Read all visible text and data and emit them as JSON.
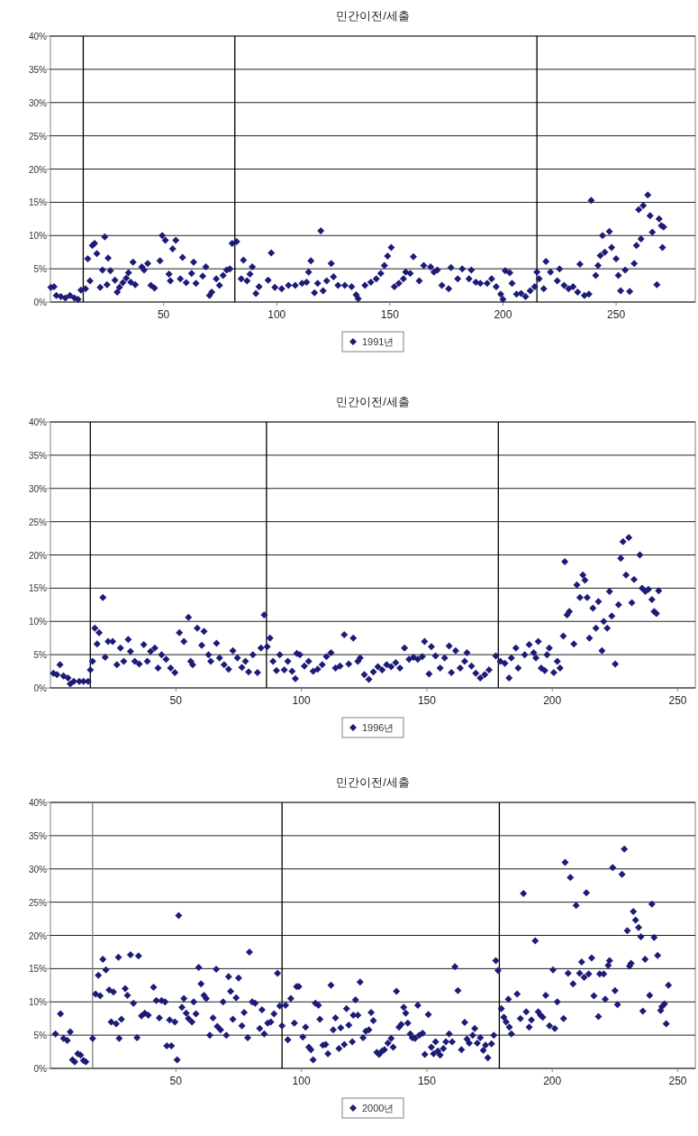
{
  "chart_data": [
    {
      "type": "scatter",
      "title": "민간이전/세출",
      "xlim": [
        0,
        285
      ],
      "xticks": [
        50,
        100,
        150,
        200,
        250
      ],
      "ylim": [
        0,
        40
      ],
      "yticks": [
        {
          "value": 0,
          "label": "0%"
        },
        {
          "value": 5,
          "label": "5%"
        },
        {
          "value": 10,
          "label": "10%"
        },
        {
          "value": 15,
          "label": "15%"
        },
        {
          "value": 20,
          "label": "20%"
        },
        {
          "value": 25,
          "label": "25%"
        },
        {
          "value": 30,
          "label": "30%"
        },
        {
          "value": 35,
          "label": "35%"
        },
        {
          "value": 40,
          "label": "40%"
        }
      ],
      "grid": "y",
      "legend": "bottom",
      "marker": "diamond",
      "ref_lines": [
        {
          "axis": "x",
          "value": 14.5,
          "color": "#000000"
        },
        {
          "axis": "x",
          "value": 81.5,
          "color": "#000000"
        },
        {
          "axis": "x",
          "value": 215,
          "color": "#000000"
        }
      ],
      "series": [
        {
          "name": "1991년",
          "color": "#1c1c78",
          "x": [
            0.2,
            1.6,
            2.6,
            4.6,
            6.6,
            8.6,
            10.6,
            12.2,
            13.5,
            15.5,
            16.5,
            17.5,
            18.5,
            19.5,
            20.5,
            22,
            23,
            24,
            25,
            25.5,
            26.5,
            28.5,
            29.5,
            30.5,
            32,
            33.5,
            34.5,
            35.5,
            36.5,
            37.5,
            40.4,
            41.4,
            43,
            44.4,
            46,
            48.4,
            49.4,
            50.8,
            52.4,
            53,
            54,
            55.4,
            57.4,
            58.4,
            60,
            62.4,
            63.3,
            64.3,
            67.3,
            68.7,
            70.3,
            71.3,
            73.3,
            74.7,
            76.3,
            77.9,
            79.3,
            80.3,
            82.3,
            84.3,
            85.3,
            86.9,
            88.2,
            89.2,
            90.8,
            92.2,
            96.2,
            97.6,
            99.2,
            102.2,
            105.2,
            108.2,
            111.2,
            113.2,
            114.1,
            115.1,
            116.7,
            118.1,
            119.5,
            120.5,
            122.1,
            124.1,
            125.1,
            127.1,
            130.1,
            133.1,
            135.1,
            136,
            139,
            141.6,
            144,
            146,
            147.6,
            149,
            150.6,
            152,
            154,
            156,
            157,
            159,
            160.4,
            163,
            165,
            168,
            169.5,
            171,
            173,
            176,
            177,
            180,
            182,
            185,
            186,
            188,
            190,
            193,
            195,
            197,
            199,
            200,
            201,
            203,
            204,
            206,
            208,
            210,
            212,
            214,
            215,
            216,
            218,
            219,
            221,
            224,
            225,
            227,
            229,
            231,
            233,
            234,
            236,
            238,
            239,
            241,
            242,
            243,
            244,
            245,
            247,
            248,
            250,
            251,
            252,
            254,
            256,
            258,
            259,
            260,
            261,
            262,
            264,
            265,
            266,
            268,
            269,
            270,
            270.5,
            271
          ],
          "values": [
            2.2,
            2.3,
            1,
            0.8,
            0.6,
            1,
            0.6,
            0.4,
            1.8,
            2,
            6.5,
            3.2,
            8.5,
            8.8,
            7.3,
            2.2,
            4.8,
            9.8,
            2.6,
            6.6,
            4.7,
            3.3,
            1.5,
            2.2,
            2.9,
            3.6,
            4.4,
            3,
            6,
            2.6,
            5.3,
            4.8,
            5.8,
            2.5,
            2.1,
            6.2,
            10,
            9.3,
            4.2,
            3.2,
            8,
            9.3,
            3.5,
            6.7,
            2.9,
            4.3,
            6,
            2.8,
            3.9,
            5.3,
            1,
            1.5,
            3.5,
            2.5,
            4,
            4.8,
            5,
            8.8,
            9.1,
            3.5,
            6.3,
            3.2,
            4.2,
            5.3,
            1.3,
            2.3,
            3.3,
            7.4,
            2.2,
            2,
            2.5,
            2.5,
            2.8,
            3,
            4.5,
            6.2,
            1.4,
            2.8,
            10.7,
            1.7,
            3.2,
            5.8,
            3.8,
            2.5,
            2.5,
            2.3,
            1.1,
            0.5,
            2.5,
            3,
            3.5,
            4.3,
            5.5,
            6.9,
            8.2,
            2.3,
            2.8,
            3.5,
            4.5,
            4.3,
            6.8,
            3.2,
            5.5,
            5.3,
            4.5,
            4.8,
            2.5,
            2,
            5.2,
            3.5,
            5,
            3.5,
            4.8,
            3,
            2.8,
            2.8,
            3.5,
            2.3,
            1.2,
            0.4,
            4.7,
            4.4,
            2.8,
            1.2,
            1.3,
            0.8,
            1.7,
            2.3,
            4.5,
            3.5,
            2,
            6.1,
            4.5,
            3.2,
            5,
            2.5,
            2,
            2.3,
            1.5,
            5.7,
            1,
            1.2,
            15.3,
            4,
            5.5,
            7,
            10,
            7.5,
            10.6,
            8.2,
            6.5,
            4,
            1.7,
            4.8,
            1.6,
            5.8,
            8.5,
            13.9,
            9.5,
            14.5,
            16.1,
            13,
            10.5,
            2.6,
            12.5,
            11.5,
            8.2,
            11.3
          ]
        }
      ]
    },
    {
      "type": "scatter",
      "title": "민간이전/세출",
      "xlim": [
        0,
        257
      ],
      "xticks": [
        50,
        100,
        150,
        200,
        250
      ],
      "ylim": [
        0,
        40
      ],
      "yticks": [
        {
          "value": 0,
          "label": "0%"
        },
        {
          "value": 5,
          "label": "5%"
        },
        {
          "value": 10,
          "label": "10%"
        },
        {
          "value": 15,
          "label": "15%"
        },
        {
          "value": 20,
          "label": "20%"
        },
        {
          "value": 25,
          "label": "25%"
        },
        {
          "value": 30,
          "label": "30%"
        },
        {
          "value": 35,
          "label": "35%"
        },
        {
          "value": 40,
          "label": "40%"
        }
      ],
      "grid": "y",
      "legend": "bottom",
      "marker": "diamond",
      "ref_lines": [
        {
          "axis": "x",
          "value": 15.9,
          "color": "#000000"
        },
        {
          "axis": "x",
          "value": 86.1,
          "color": "#000000"
        },
        {
          "axis": "x",
          "value": 178.5,
          "color": "#000000"
        }
      ],
      "series": [
        {
          "name": "1996년",
          "color": "#1c1c78",
          "x": [
            1.2,
            2.6,
            3.8,
            5.2,
            7,
            7.9,
            9.3,
            11.5,
            13.2,
            15,
            15.9,
            16.8,
            17.7,
            18.6,
            19.4,
            20.9,
            21.8,
            23,
            24.8,
            26.5,
            27.9,
            29.2,
            31,
            31.9,
            33.6,
            35.4,
            37.2,
            38.6,
            39.9,
            41.6,
            42.9,
            44.3,
            46.1,
            47.9,
            49.6,
            51.4,
            53.2,
            55,
            55.9,
            56.7,
            58.5,
            60.3,
            61.2,
            63,
            63.9,
            66.2,
            67.4,
            69.2,
            71,
            72.7,
            74.5,
            76.3,
            77.7,
            79,
            80.7,
            82.5,
            83.9,
            85.2,
            86.4,
            87.5,
            88.7,
            90.1,
            91.4,
            93.2,
            94.6,
            96.3,
            97.6,
            98.2,
            99.4,
            101.2,
            102.9,
            104.7,
            106.5,
            108.3,
            110,
            111.8,
            113.6,
            115.4,
            117.1,
            118.9,
            120.7,
            122.5,
            123.4,
            125.1,
            126.9,
            128.7,
            130.5,
            132.2,
            134,
            135.8,
            137.6,
            139.3,
            141.1,
            142.9,
            144.7,
            146.4,
            148.2,
            149.1,
            150.9,
            151.8,
            153.5,
            155.3,
            157.1,
            158.9,
            159.8,
            161.5,
            163.3,
            165.1,
            166,
            167.8,
            169.5,
            171.3,
            173.1,
            174.8,
            177.5,
            179.3,
            181.1,
            182.8,
            183.7,
            185.5,
            186.4,
            189,
            190.8,
            192.6,
            193.5,
            194.4,
            195.6,
            197,
            197.9,
            198.8,
            200.6,
            202,
            203.1,
            204.4,
            205,
            205.9,
            206.8,
            208.6,
            209.8,
            211,
            212.2,
            213,
            213.9,
            214.8,
            216.2,
            217.4,
            218.4,
            219.8,
            220.5,
            221.9,
            222.8,
            223.7,
            225.1,
            226.4,
            227.3,
            228.2,
            229.4,
            230.5,
            231.7,
            232.6,
            234.9,
            235.8,
            237.1,
            238.3,
            239.7,
            240.6,
            241.5,
            242.4
          ],
          "values": [
            2.2,
            2,
            3.5,
            1.8,
            1.5,
            0.6,
            1,
            1,
            1,
            1,
            2.7,
            4,
            9,
            6.6,
            8.3,
            13.6,
            4.6,
            7,
            7,
            3.5,
            6,
            4,
            7.3,
            5.5,
            4,
            3.6,
            6.5,
            4,
            5.5,
            6,
            3,
            5,
            4.3,
            3,
            2.3,
            8.3,
            7,
            10.6,
            4,
            3.5,
            9,
            6.4,
            8.5,
            5,
            4,
            6.7,
            4.5,
            3.5,
            2.8,
            5.6,
            4.5,
            3.1,
            4,
            2.4,
            5,
            2.3,
            6,
            11,
            6.2,
            7.5,
            4,
            2.6,
            5,
            2.7,
            4,
            2.5,
            1.4,
            5.2,
            5,
            3.3,
            4,
            2.5,
            2.8,
            3.5,
            4.7,
            5.3,
            3,
            3.3,
            8,
            3.6,
            7.5,
            4,
            4.5,
            2,
            1.3,
            2.4,
            3.2,
            2.7,
            3.5,
            3.2,
            3.8,
            3,
            6,
            4.3,
            4.6,
            4.3,
            4.7,
            7,
            2.1,
            6.2,
            4.8,
            3,
            4.5,
            6.3,
            2.3,
            5.6,
            3,
            4,
            5.3,
            3.3,
            2.2,
            1.5,
            2,
            2.7,
            4.8,
            4,
            3.7,
            1.5,
            4.5,
            6,
            3,
            5,
            6.5,
            5.3,
            4.5,
            7,
            3,
            2.6,
            5,
            6,
            2.3,
            4,
            3,
            7.8,
            19,
            11,
            11.5,
            6.6,
            15.5,
            13.6,
            17,
            16.2,
            13.6,
            7.5,
            12,
            9,
            13,
            5.6,
            10,
            9,
            14.5,
            10.8,
            3.6,
            12.5,
            19.5,
            22,
            17,
            22.6,
            12.8,
            16.3,
            20,
            15,
            14.5,
            14.8,
            13.3,
            11.5,
            11.2,
            14.6
          ]
        }
      ]
    },
    {
      "type": "scatter",
      "title": "민간이전/세출",
      "xlim": [
        0,
        257
      ],
      "xticks": [
        50,
        100,
        150,
        200,
        250
      ],
      "ylim": [
        0,
        40
      ],
      "yticks": [
        {
          "value": 0,
          "label": "0%"
        },
        {
          "value": 5,
          "label": "5%"
        },
        {
          "value": 10,
          "label": "10%"
        },
        {
          "value": 15,
          "label": "15%"
        },
        {
          "value": 20,
          "label": "20%"
        },
        {
          "value": 25,
          "label": "25%"
        },
        {
          "value": 30,
          "label": "30%"
        },
        {
          "value": 35,
          "label": "35%"
        },
        {
          "value": 40,
          "label": "40%"
        }
      ],
      "grid": "y",
      "legend": "bottom",
      "marker": "diamond",
      "ref_lines": [
        {
          "axis": "x",
          "value": 16.8,
          "color": "#808080"
        },
        {
          "axis": "x",
          "value": 92.3,
          "color": "#000000"
        },
        {
          "axis": "x",
          "value": 178.9,
          "color": "#000000"
        }
      ],
      "series": [
        {
          "name": "2000년",
          "color": "#1c1c78",
          "x": [
            2,
            4,
            5.2,
            6.7,
            7.9,
            8.8,
            9.7,
            10.9,
            12,
            13.2,
            14.1,
            16.8,
            18,
            19.1,
            19.8,
            20.9,
            22.1,
            23.4,
            24.2,
            25.1,
            26.2,
            27.1,
            27.4,
            28.3,
            29.8,
            30.7,
            31.9,
            33.1,
            34.5,
            35.1,
            36.3,
            37.6,
            39,
            41.1,
            42.2,
            43.4,
            44.3,
            45.7,
            46.4,
            47.5,
            48.2,
            49.6,
            50.5,
            51.1,
            52.4,
            53.2,
            54.1,
            55,
            56.4,
            57.1,
            58,
            59.1,
            60,
            61.2,
            62.1,
            63.5,
            64.8,
            66.1,
            66.5,
            67.8,
            68.8,
            70.1,
            71,
            71.8,
            72.7,
            74,
            75,
            76.3,
            77.2,
            78.6,
            79.3,
            80.4,
            81.6,
            83.4,
            84.3,
            85.2,
            86.6,
            87.8,
            89.1,
            90.5,
            91.4,
            92.3,
            93.7,
            94.6,
            95.8,
            97.2,
            98.1,
            99,
            100.6,
            101.7,
            103,
            103.8,
            104.7,
            105.6,
            106.8,
            107.4,
            108.6,
            109.7,
            110.6,
            111.8,
            112.7,
            113.6,
            115,
            115.7,
            117.1,
            118,
            118.9,
            120.3,
            120.7,
            121.6,
            122.5,
            123.4,
            124.6,
            125.7,
            126.9,
            127.8,
            128.7,
            130.1,
            131,
            132.2,
            133.1,
            134.5,
            135.8,
            136.6,
            137.9,
            138.9,
            139.8,
            140.8,
            141.6,
            142.4,
            143.4,
            144.2,
            145.3,
            146.4,
            147,
            148.3,
            149.2,
            150.6,
            151.8,
            152.7,
            153.5,
            154.4,
            155.3,
            156.6,
            157.6,
            158.9,
            160.1,
            161.2,
            162.4,
            163.8,
            165.1,
            166,
            166.9,
            168.3,
            169.1,
            170.1,
            171.3,
            172.5,
            173.4,
            174.3,
            175.8,
            176.7,
            177.5,
            178.4,
            179.7,
            180.7,
            181.6,
            182.9,
            183.7,
            182.5,
            186,
            187.3,
            188.5,
            189.6,
            190.8,
            191.7,
            193.2,
            194.4,
            195.3,
            196.2,
            197.4,
            198.9,
            200.3,
            201,
            202,
            204.5,
            205.1,
            206.3,
            207.2,
            208.3,
            209.5,
            210.9,
            211.7,
            212.7,
            213.6,
            214.5,
            215.7,
            216.6,
            218.4,
            218.9,
            220.5,
            221.1,
            222.3,
            222.8,
            224.1,
            225,
            226,
            227.8,
            228.7,
            229.9,
            230.8,
            231.4,
            232.3,
            233.2,
            234.4,
            235.3,
            236.1,
            237,
            238.8,
            239.7,
            240.6,
            242,
            243.2,
            243.7,
            244.7,
            245.4,
            246.3
          ],
          "values": [
            5.2,
            8.2,
            4.5,
            4.2,
            5.5,
            1.3,
            1,
            2.2,
            2,
            1.2,
            1,
            4.5,
            11.2,
            14,
            10.9,
            16.4,
            14.8,
            11.8,
            7,
            11.5,
            6.7,
            16.7,
            4.5,
            7.4,
            12,
            11,
            17.1,
            9.8,
            4.6,
            16.9,
            7.9,
            8.3,
            8,
            12.2,
            10.2,
            7.6,
            10.2,
            10,
            3.4,
            7.3,
            3.4,
            7,
            1.3,
            23,
            9.2,
            10.5,
            8.3,
            7.5,
            7,
            10,
            8.2,
            15.2,
            12.7,
            11,
            10.5,
            5,
            7.6,
            14.9,
            6.3,
            5.8,
            10,
            5,
            13.8,
            11.6,
            7.4,
            10.6,
            13.6,
            6.4,
            8.4,
            4.6,
            17.5,
            10,
            9.8,
            6,
            8.8,
            5.2,
            6.8,
            7,
            8.2,
            14.3,
            9.4,
            6.4,
            9.5,
            4.3,
            10.5,
            6.8,
            12.3,
            12.3,
            4.7,
            6.2,
            3.2,
            2.8,
            1.3,
            9.8,
            9.5,
            7.4,
            3.5,
            3.6,
            2.2,
            12.5,
            5.8,
            7.6,
            3,
            6.1,
            3.6,
            9,
            6.5,
            4,
            8,
            10.3,
            8,
            13,
            4.6,
            5.6,
            5.8,
            8.4,
            7.2,
            2.4,
            2.1,
            2.6,
            2.8,
            3.8,
            4.5,
            3.2,
            11.6,
            6.2,
            6.6,
            9.2,
            8.3,
            6.8,
            5.2,
            4.6,
            4.5,
            9.5,
            5,
            5.3,
            2.1,
            8.1,
            3.2,
            2.2,
            4,
            2.6,
            2,
            3,
            4,
            5.2,
            4,
            15.3,
            11.7,
            2.8,
            6.9,
            4.4,
            3.8,
            5,
            6,
            3.8,
            4.6,
            2.7,
            3.5,
            1.6,
            3.7,
            5,
            16.2,
            14.7,
            9,
            7.7,
            7,
            6.2,
            5.2,
            10.4,
            11.2,
            7.5,
            26.3,
            8.5,
            6.2,
            7.3,
            19.2,
            8.5,
            8,
            7.7,
            11,
            6.4,
            14.8,
            6,
            10,
            7.5,
            31,
            14.3,
            28.7,
            12.7,
            24.5,
            14.3,
            16,
            13.7,
            26.4,
            14.2,
            16.6,
            10.9,
            7.8,
            14.2,
            14.2,
            10.4,
            15.5,
            16.2,
            30.2,
            11.7,
            9.6,
            29.2,
            33,
            20.7,
            15.4,
            15.8,
            23.6,
            22.3,
            21.2,
            19.8,
            8.6,
            16.4,
            11,
            24.7,
            19.7,
            17,
            8.7,
            9.3,
            9.7,
            6.7,
            12.5
          ]
        }
      ]
    }
  ]
}
